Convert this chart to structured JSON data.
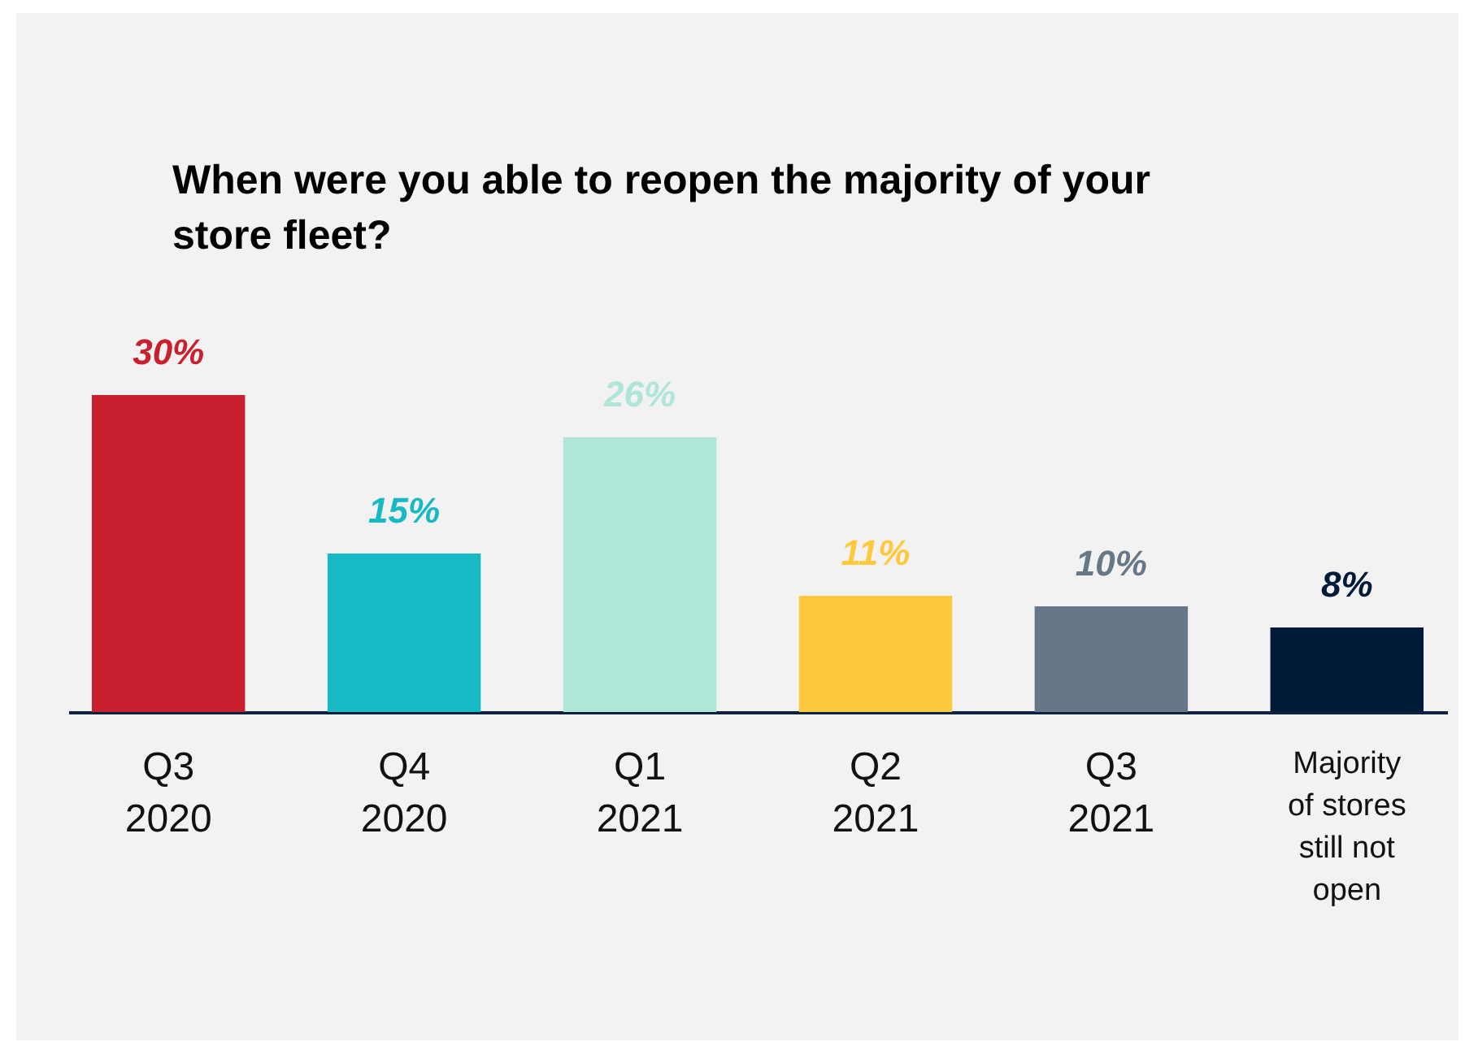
{
  "chart_data": {
    "type": "bar",
    "title": "When were you able to reopen the majority of your store fleet?",
    "categories": [
      "Q3\n2020",
      "Q4\n2020",
      "Q1\n2021",
      "Q2\n2021",
      "Q3\n2021",
      "Majority\nof stores\nstill not\nopen"
    ],
    "values": [
      30,
      15,
      26,
      11,
      10,
      8
    ],
    "colors": [
      "#c8202f",
      "#17b9c4",
      "#b0e5d9",
      "#ffc93e",
      "#667788",
      "#001a38"
    ],
    "value_labels": [
      "30%",
      "15%",
      "26%",
      "11%",
      "10%",
      "8%"
    ],
    "grid": false
  }
}
